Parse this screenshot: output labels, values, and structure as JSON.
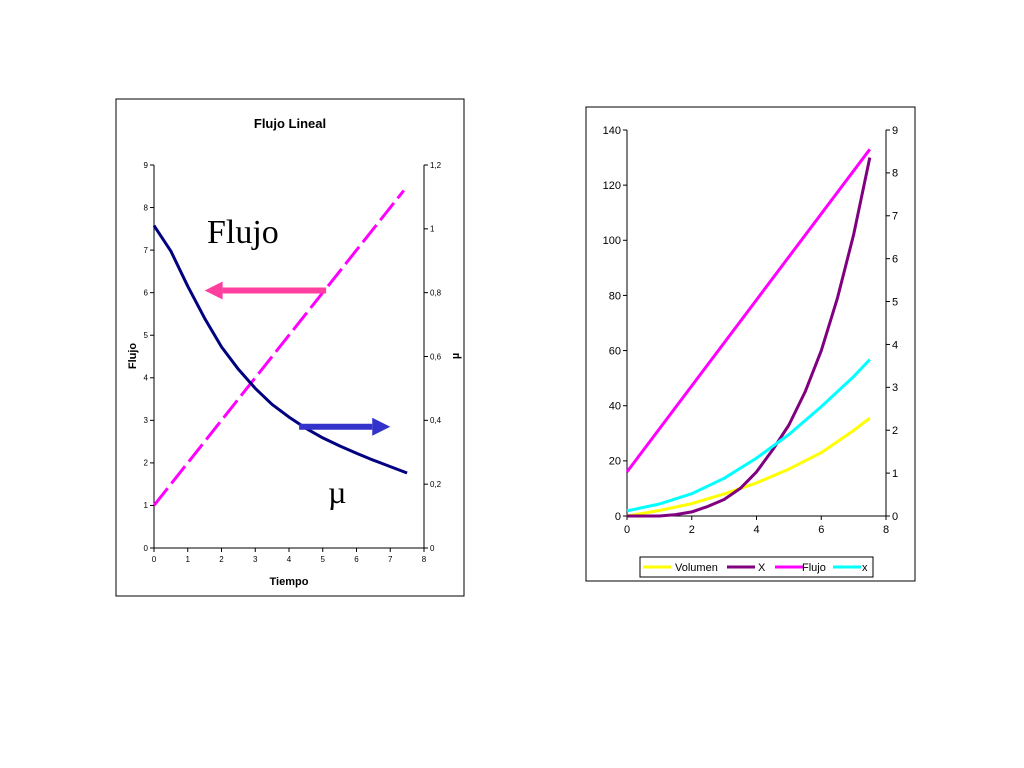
{
  "chart_data": [
    {
      "type": "line",
      "title": "Flujo Lineal",
      "xlabel": "Tiempo",
      "ylabel": "Flujo",
      "y2label": "µ",
      "xlim": [
        0,
        8
      ],
      "ylim": [
        0,
        9
      ],
      "y2lim": [
        0,
        1.2
      ],
      "x_ticks": [
        "0",
        "1",
        "2",
        "3",
        "4",
        "5",
        "6",
        "7",
        "8"
      ],
      "y_ticks": [
        "0",
        "1",
        "2",
        "3",
        "4",
        "5",
        "6",
        "7",
        "8",
        "9"
      ],
      "y2_ticks": [
        "0",
        "0,2",
        "0,4",
        "0,6",
        "0,8",
        "1",
        "1,2"
      ],
      "grid": false,
      "annotations": [
        "Flujo",
        "µ"
      ],
      "series": [
        {
          "axis": "y",
          "color": "#ff00ff",
          "dashed": true,
          "x": [
            0,
            7.4
          ],
          "values": [
            1.0,
            8.4
          ]
        },
        {
          "axis": "y2",
          "color": "#000080",
          "dashed": false,
          "x": [
            0,
            0.5,
            1,
            1.5,
            2,
            2.5,
            3,
            3.5,
            4,
            4.5,
            5,
            5.5,
            6,
            6.5,
            7,
            7.5
          ],
          "values": [
            1.01,
            0.93,
            0.82,
            0.72,
            0.63,
            0.56,
            0.5,
            0.45,
            0.41,
            0.375,
            0.345,
            0.32,
            0.297,
            0.275,
            0.255,
            0.235
          ]
        }
      ],
      "arrows": [
        {
          "color": "#ff3fa0",
          "direction": "left",
          "from": [
            5.1,
            6.05
          ],
          "to": [
            1.5,
            6.05
          ]
        },
        {
          "color": "#3333cc",
          "direction": "right",
          "from": [
            4.3,
            2.85
          ],
          "to": [
            7.0,
            2.85
          ]
        }
      ]
    },
    {
      "type": "line",
      "title": "",
      "xlabel": "",
      "ylabel": "",
      "xlim": [
        0,
        8
      ],
      "ylim": [
        0,
        140
      ],
      "y2lim": [
        0,
        9
      ],
      "x_ticks": [
        "0",
        "2",
        "4",
        "6",
        "8"
      ],
      "y_ticks": [
        "0",
        "20",
        "40",
        "60",
        "80",
        "100",
        "120",
        "140"
      ],
      "y2_ticks": [
        "0",
        "1",
        "2",
        "3",
        "4",
        "5",
        "6",
        "7",
        "8",
        "9"
      ],
      "grid": false,
      "legend": "bottom",
      "series": [
        {
          "name": "Volumen",
          "axis": "y",
          "color": "#ffff00",
          "x": [
            0,
            1,
            2,
            3,
            4,
            5,
            6,
            7,
            7.5
          ],
          "values": [
            0,
            2,
            4.5,
            8,
            12,
            17,
            23,
            31,
            35.5
          ]
        },
        {
          "name": "X",
          "axis": "y",
          "color": "#800080",
          "x": [
            0,
            1,
            1.5,
            2,
            2.5,
            3,
            3.5,
            4,
            4.5,
            5,
            5.5,
            6,
            6.5,
            7,
            7.5
          ],
          "values": [
            0,
            0,
            0.5,
            1.5,
            3.5,
            6,
            10,
            16,
            24,
            33,
            45,
            60,
            79,
            102,
            130
          ]
        },
        {
          "name": "Flujo",
          "axis": "y",
          "color": "#ff00ff",
          "x": [
            0,
            7.5
          ],
          "values": [
            16,
            133
          ]
        },
        {
          "name": "x",
          "axis": "y2",
          "color": "#00ffff",
          "x": [
            0,
            1,
            2,
            3,
            4,
            5,
            6,
            7,
            7.5
          ],
          "values": [
            0.12,
            0.28,
            0.52,
            0.88,
            1.35,
            1.9,
            2.55,
            3.25,
            3.65
          ]
        }
      ]
    }
  ]
}
